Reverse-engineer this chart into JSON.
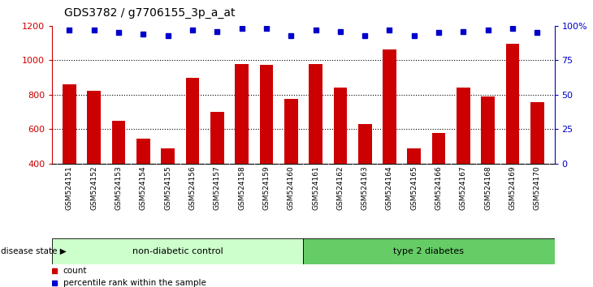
{
  "title": "GDS3782 / g7706155_3p_a_at",
  "samples": [
    "GSM524151",
    "GSM524152",
    "GSM524153",
    "GSM524154",
    "GSM524155",
    "GSM524156",
    "GSM524157",
    "GSM524158",
    "GSM524159",
    "GSM524160",
    "GSM524161",
    "GSM524162",
    "GSM524163",
    "GSM524164",
    "GSM524165",
    "GSM524166",
    "GSM524167",
    "GSM524168",
    "GSM524169",
    "GSM524170"
  ],
  "counts": [
    860,
    825,
    648,
    545,
    487,
    900,
    700,
    980,
    975,
    775,
    980,
    840,
    632,
    1065,
    487,
    580,
    840,
    790,
    1095,
    755
  ],
  "percentiles": [
    97,
    97,
    95,
    94,
    93,
    97,
    96,
    98,
    98,
    93,
    97,
    96,
    93,
    97,
    93,
    95,
    96,
    97,
    98,
    95
  ],
  "bar_color": "#cc0000",
  "dot_color": "#0000cc",
  "ylim_left": [
    400,
    1200
  ],
  "ylim_right": [
    0,
    100
  ],
  "yticks_left": [
    400,
    600,
    800,
    1000,
    1200
  ],
  "yticks_right": [
    0,
    25,
    50,
    75,
    100
  ],
  "grid_values": [
    600,
    800,
    1000
  ],
  "non_diabetic_count": 10,
  "diabetic_count": 10,
  "non_diabetic_label": "non-diabetic control",
  "diabetic_label": "type 2 diabetes",
  "disease_state_label": "disease state",
  "legend_count_label": "count",
  "legend_pct_label": "percentile rank within the sample",
  "bg_color_nondiabetic": "#ccffcc",
  "bg_color_diabetic": "#66cc66",
  "xlabel_bg_color": "#cccccc",
  "title_fontsize": 10,
  "tick_fontsize": 8,
  "xlabel_fontsize": 6.5
}
